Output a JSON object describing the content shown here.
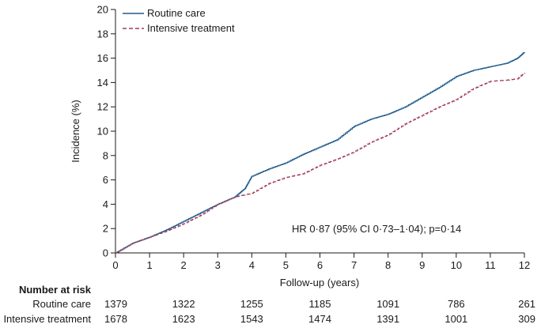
{
  "chart_data": {
    "type": "line",
    "title": "",
    "xlabel": "Follow-up (years)",
    "ylabel": "Incidence (%)",
    "xlim": [
      0,
      12
    ],
    "ylim": [
      0,
      20
    ],
    "x_ticks": [
      0,
      1,
      2,
      3,
      4,
      5,
      6,
      7,
      8,
      9,
      10,
      11,
      12
    ],
    "y_ticks": [
      0,
      2,
      4,
      6,
      8,
      10,
      12,
      14,
      16,
      18,
      20
    ],
    "grid": false,
    "legend_position": "top-left",
    "annotation": "HR 0·87 (95% CI 0·73–1·04); p=0·14",
    "series": [
      {
        "name": "Routine care",
        "color": "#1f5b8c",
        "style": "solid",
        "x": [
          0,
          0.5,
          1,
          1.5,
          2,
          2.5,
          3,
          3.5,
          3.8,
          4,
          4.5,
          5,
          5.5,
          6,
          6.5,
          7,
          7.5,
          8,
          8.5,
          9,
          9.5,
          10,
          10.5,
          11,
          11.5,
          11.8,
          12
        ],
        "y": [
          0,
          0.8,
          1.3,
          1.9,
          2.6,
          3.3,
          4.0,
          4.6,
          5.3,
          6.3,
          6.9,
          7.4,
          8.1,
          8.7,
          9.3,
          10.4,
          11.0,
          11.4,
          12.0,
          12.8,
          13.6,
          14.5,
          15.0,
          15.3,
          15.6,
          16.0,
          16.5
        ]
      },
      {
        "name": "Intensive treatment",
        "color": "#a03c5a",
        "style": "dashed",
        "x": [
          0,
          0.5,
          1,
          1.5,
          2,
          2.5,
          3,
          3.5,
          4,
          4.5,
          5,
          5.5,
          6,
          6.5,
          7,
          7.5,
          8,
          8.5,
          9,
          9.5,
          10,
          10.5,
          11,
          11.5,
          11.8,
          12
        ],
        "y": [
          0,
          0.8,
          1.3,
          1.8,
          2.4,
          3.1,
          4.0,
          4.6,
          4.9,
          5.7,
          6.2,
          6.5,
          7.2,
          7.7,
          8.3,
          9.1,
          9.7,
          10.6,
          11.3,
          12.0,
          12.6,
          13.5,
          14.1,
          14.2,
          14.3,
          14.8
        ]
      }
    ],
    "number_at_risk": {
      "title": "Number at risk",
      "times": [
        0,
        2,
        4,
        6,
        8,
        10,
        12
      ],
      "rows": [
        {
          "label": "Routine care",
          "values": [
            "1379",
            "1322",
            "1255",
            "1185",
            "1091",
            "786",
            "261"
          ]
        },
        {
          "label": "Intensive treatment",
          "values": [
            "1678",
            "1623",
            "1543",
            "1474",
            "1391",
            "1001",
            "309"
          ]
        }
      ]
    }
  }
}
